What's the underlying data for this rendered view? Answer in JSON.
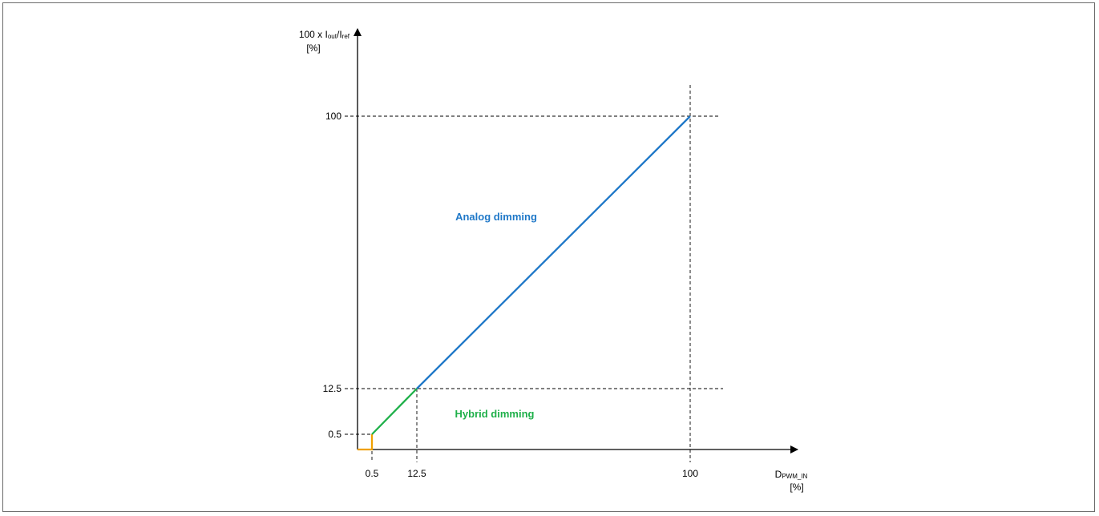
{
  "chart_data": {
    "type": "line",
    "y_axis": {
      "label_prefix": "100 x I",
      "label_sub1": "out",
      "label_mid": "/I",
      "label_sub2": "ref",
      "unit": "[%]",
      "ticks": [
        "100",
        "12.5",
        "0.5"
      ]
    },
    "x_axis": {
      "label_main": "D",
      "label_sub": "PWM_IN",
      "unit": "[%]",
      "ticks": [
        "0.5",
        "12.5",
        "100"
      ]
    },
    "regions": [
      {
        "name": "Analog dimming",
        "color": "#1f78c8"
      },
      {
        "name": "Hybrid dimming",
        "color": "#1fb04a"
      }
    ],
    "series": [
      {
        "segment": "off",
        "color": "#f0a000",
        "points": [
          [
            0,
            0
          ],
          [
            0.5,
            0
          ],
          [
            0.5,
            0.5
          ]
        ]
      },
      {
        "segment": "hybrid",
        "color": "#1fb04a",
        "points": [
          [
            0.5,
            0.5
          ],
          [
            12.5,
            12.5
          ]
        ]
      },
      {
        "segment": "analog",
        "color": "#1f78c8",
        "points": [
          [
            12.5,
            12.5
          ],
          [
            100,
            100
          ]
        ]
      }
    ],
    "reference_lines": {
      "x": [
        0.5,
        12.5,
        100
      ],
      "y": [
        0.5,
        12.5,
        100
      ]
    }
  }
}
